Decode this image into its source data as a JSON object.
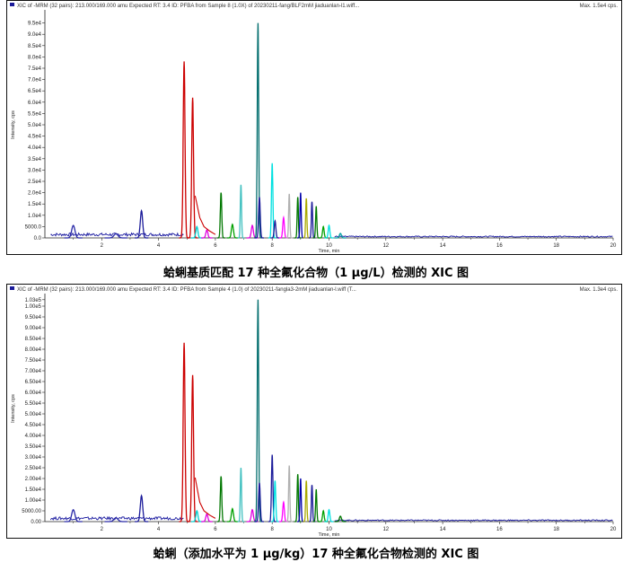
{
  "chart_data": [
    {
      "type": "line",
      "header": "XIC of -MRM (32 pairs): 213.000/169.000 amu Expected RT: 3.4 ID: PFBA from Sample 8 (1.0X) of 20230211-fang/BLF2mM jiaduanlan-l1.wiff...",
      "max_label": "Max. 1.5e4 cps.",
      "caption": "蛤蜊基质匹配 17 种全氟化合物（1 μg/L）检测的 XIC 图",
      "xlabel": "Time, min",
      "ylabel": "Intensity, cps",
      "xlim": [
        0,
        20
      ],
      "ylim": [
        0,
        10000
      ],
      "x_ticks": [
        2,
        4,
        6,
        8,
        10,
        12,
        14,
        16,
        18,
        20
      ],
      "y_ticks": [
        {
          "v": 0,
          "label": "0.0"
        },
        {
          "v": 500,
          "label": "5000.0"
        },
        {
          "v": 1000,
          "label": "1.0e4"
        },
        {
          "v": 1500,
          "label": "1.5e4"
        },
        {
          "v": 2000,
          "label": "2.0e4"
        },
        {
          "v": 2500,
          "label": "2.5e4"
        },
        {
          "v": 3000,
          "label": "3.0e4"
        },
        {
          "v": 3500,
          "label": "3.5e4"
        },
        {
          "v": 4000,
          "label": "4.0e4"
        },
        {
          "v": 4500,
          "label": "4.5e4"
        },
        {
          "v": 5000,
          "label": "5.0e4"
        },
        {
          "v": 5500,
          "label": "5.5e4"
        },
        {
          "v": 6000,
          "label": "6.0e4"
        },
        {
          "v": 6500,
          "label": "6.5e4"
        },
        {
          "v": 7000,
          "label": "7.0e4"
        },
        {
          "v": 7500,
          "label": "7.5e4"
        },
        {
          "v": 8000,
          "label": "8.0e4"
        },
        {
          "v": 8500,
          "label": "8.5e4"
        },
        {
          "v": 9000,
          "label": "9.0e4"
        },
        {
          "v": 9500,
          "label": "9.5e4"
        }
      ],
      "baseline": {
        "color": "#1a1aa0",
        "segments": [
          {
            "from": 0.2,
            "to": 4.9,
            "level": 150
          },
          {
            "from": 10.2,
            "to": 20,
            "level": 60
          }
        ]
      },
      "peaks": [
        {
          "x": 1.0,
          "h": 550,
          "w": 0.08,
          "color": "#2a2aa8"
        },
        {
          "x": 2.5,
          "h": 180,
          "w": 0.1,
          "color": "#2a2aa8"
        },
        {
          "x": 3.4,
          "h": 1200,
          "w": 0.06,
          "color": "#1b1b9a"
        },
        {
          "x": 4.9,
          "h": 7800,
          "w": 0.045,
          "color": "#cc0000"
        },
        {
          "x": 5.2,
          "h": 6200,
          "w": 0.045,
          "color": "#cc0000"
        },
        {
          "x": 5.35,
          "h": 500,
          "w": 0.05,
          "color": "#00d0d0"
        },
        {
          "x": 5.7,
          "h": 350,
          "w": 0.05,
          "color": "#e000e0"
        },
        {
          "x": 6.2,
          "h": 2000,
          "w": 0.035,
          "color": "#007700"
        },
        {
          "x": 6.6,
          "h": 600,
          "w": 0.05,
          "color": "#00a000"
        },
        {
          "x": 6.9,
          "h": 2350,
          "w": 0.03,
          "color": "#40c0c0"
        },
        {
          "x": 7.3,
          "h": 550,
          "w": 0.05,
          "color": "#e000e0"
        },
        {
          "x": 7.5,
          "h": 9500,
          "w": 0.035,
          "color": "#006d6d"
        },
        {
          "x": 7.55,
          "h": 1800,
          "w": 0.04,
          "color": "#1b1b9a"
        },
        {
          "x": 8.0,
          "h": 3300,
          "w": 0.035,
          "color": "#00e0e0"
        },
        {
          "x": 8.1,
          "h": 750,
          "w": 0.04,
          "color": "#1b1b9a"
        },
        {
          "x": 8.4,
          "h": 900,
          "w": 0.04,
          "color": "#ff00ff"
        },
        {
          "x": 8.6,
          "h": 1950,
          "w": 0.03,
          "color": "#b0b0b0"
        },
        {
          "x": 8.9,
          "h": 1800,
          "w": 0.03,
          "color": "#007700"
        },
        {
          "x": 9.0,
          "h": 2000,
          "w": 0.03,
          "color": "#0000aa"
        },
        {
          "x": 9.2,
          "h": 1750,
          "w": 0.03,
          "color": "#aaaa00"
        },
        {
          "x": 9.4,
          "h": 1600,
          "w": 0.03,
          "color": "#1b1b9a"
        },
        {
          "x": 9.55,
          "h": 1400,
          "w": 0.03,
          "color": "#007700"
        },
        {
          "x": 9.8,
          "h": 500,
          "w": 0.04,
          "color": "#00a000"
        },
        {
          "x": 10.0,
          "h": 550,
          "w": 0.04,
          "color": "#00e0e0"
        },
        {
          "x": 10.4,
          "h": 200,
          "w": 0.05,
          "color": "#00a0a0"
        }
      ]
    },
    {
      "type": "line",
      "header": "XIC of -MRM (32 pairs): 213.000/169.000 amu Expected RT: 3.4 ID: PFBA from Sample 4 (1.0) of 20230211-fangla3-2mM jiaduanlan-l.wiff (T...",
      "max_label": "Max. 1.3e4 cps.",
      "caption": "蛤蜊（添加水平为 1 μg/kg）17 种全氟化合物检测的 XIC 图",
      "xlabel": "Time, min",
      "ylabel": "Intensity, cps",
      "xlim": [
        0,
        20
      ],
      "ylim": [
        0,
        10500
      ],
      "x_ticks": [
        2,
        4,
        6,
        8,
        10,
        12,
        14,
        16,
        18,
        20
      ],
      "y_ticks": [
        {
          "v": 0,
          "label": "0.00"
        },
        {
          "v": 500,
          "label": "5000.00"
        },
        {
          "v": 1000,
          "label": "1.00e4"
        },
        {
          "v": 1500,
          "label": "1.50e4"
        },
        {
          "v": 2000,
          "label": "2.00e4"
        },
        {
          "v": 2500,
          "label": "2.50e4"
        },
        {
          "v": 3000,
          "label": "3.00e4"
        },
        {
          "v": 3500,
          "label": "3.50e4"
        },
        {
          "v": 4000,
          "label": "4.00e4"
        },
        {
          "v": 4500,
          "label": "4.50e4"
        },
        {
          "v": 5000,
          "label": "5.00e4"
        },
        {
          "v": 5500,
          "label": "5.50e4"
        },
        {
          "v": 6000,
          "label": "6.00e4"
        },
        {
          "v": 6500,
          "label": "6.50e4"
        },
        {
          "v": 7000,
          "label": "7.00e4"
        },
        {
          "v": 7500,
          "label": "7.50e4"
        },
        {
          "v": 8000,
          "label": "8.00e4"
        },
        {
          "v": 8500,
          "label": "8.50e4"
        },
        {
          "v": 9000,
          "label": "9.00e4"
        },
        {
          "v": 9500,
          "label": "9.50e4"
        },
        {
          "v": 10000,
          "label": "1.00e5"
        },
        {
          "v": 10300,
          "label": "1.03e5"
        }
      ],
      "baseline": {
        "color": "#1a1aa0",
        "segments": [
          {
            "from": 0.2,
            "to": 4.9,
            "level": 150
          },
          {
            "from": 10.2,
            "to": 20,
            "level": 60
          }
        ]
      },
      "peaks": [
        {
          "x": 1.0,
          "h": 550,
          "w": 0.08,
          "color": "#2a2aa8"
        },
        {
          "x": 2.5,
          "h": 180,
          "w": 0.1,
          "color": "#2a2aa8"
        },
        {
          "x": 3.4,
          "h": 1200,
          "w": 0.06,
          "color": "#1b1b9a"
        },
        {
          "x": 4.9,
          "h": 8300,
          "w": 0.045,
          "color": "#cc0000"
        },
        {
          "x": 5.2,
          "h": 6800,
          "w": 0.045,
          "color": "#cc0000"
        },
        {
          "x": 5.35,
          "h": 500,
          "w": 0.05,
          "color": "#00d0d0"
        },
        {
          "x": 5.7,
          "h": 350,
          "w": 0.05,
          "color": "#e000e0"
        },
        {
          "x": 6.2,
          "h": 2100,
          "w": 0.035,
          "color": "#007700"
        },
        {
          "x": 6.6,
          "h": 600,
          "w": 0.05,
          "color": "#00a000"
        },
        {
          "x": 6.9,
          "h": 2500,
          "w": 0.03,
          "color": "#40c0c0"
        },
        {
          "x": 7.3,
          "h": 550,
          "w": 0.05,
          "color": "#e000e0"
        },
        {
          "x": 7.5,
          "h": 10300,
          "w": 0.035,
          "color": "#006d6d"
        },
        {
          "x": 7.55,
          "h": 1800,
          "w": 0.04,
          "color": "#1b1b9a"
        },
        {
          "x": 8.0,
          "h": 3100,
          "w": 0.035,
          "color": "#1b1b9a"
        },
        {
          "x": 8.1,
          "h": 1900,
          "w": 0.035,
          "color": "#00e0e0"
        },
        {
          "x": 8.4,
          "h": 900,
          "w": 0.04,
          "color": "#ff00ff"
        },
        {
          "x": 8.6,
          "h": 2600,
          "w": 0.03,
          "color": "#b0b0b0"
        },
        {
          "x": 8.9,
          "h": 2200,
          "w": 0.03,
          "color": "#007700"
        },
        {
          "x": 9.0,
          "h": 2000,
          "w": 0.03,
          "color": "#0000aa"
        },
        {
          "x": 9.2,
          "h": 1900,
          "w": 0.03,
          "color": "#aaaa00"
        },
        {
          "x": 9.4,
          "h": 1700,
          "w": 0.03,
          "color": "#1b1b9a"
        },
        {
          "x": 9.55,
          "h": 1500,
          "w": 0.03,
          "color": "#007700"
        },
        {
          "x": 9.8,
          "h": 500,
          "w": 0.04,
          "color": "#00a000"
        },
        {
          "x": 10.0,
          "h": 550,
          "w": 0.04,
          "color": "#00e0e0"
        },
        {
          "x": 10.4,
          "h": 250,
          "w": 0.05,
          "color": "#007700"
        }
      ]
    }
  ]
}
